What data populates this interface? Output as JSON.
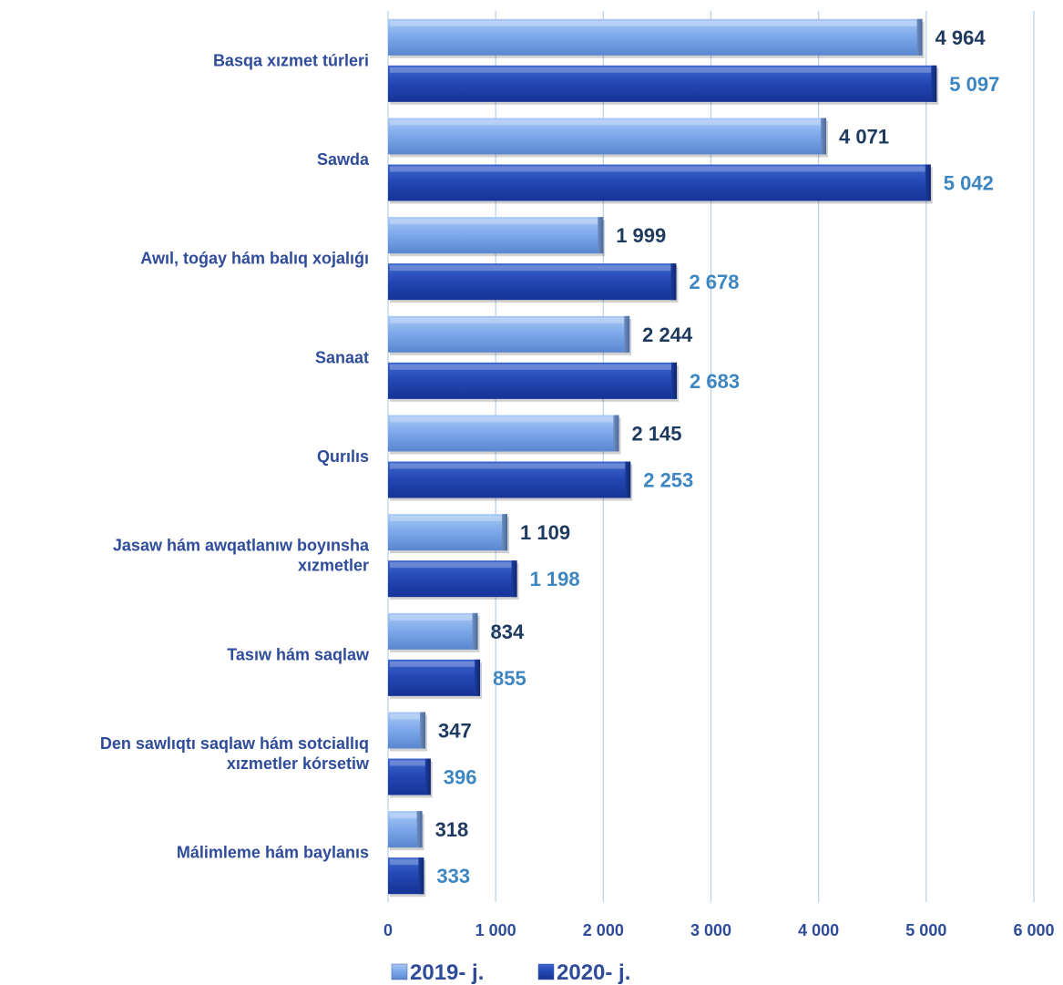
{
  "chart_data": {
    "type": "bar",
    "orientation": "horizontal",
    "categories": [
      [
        "Basqa xızmet túrleri"
      ],
      [
        "Sawda"
      ],
      [
        "Awıl, toǵay hám balıq xojalıǵı"
      ],
      [
        "Sanaat"
      ],
      [
        "Qurılıs"
      ],
      [
        "Jasaw hám awqatlanıw boyınsha",
        "xızmetler"
      ],
      [
        "Tasıw hám saqlaw"
      ],
      [
        "Den sawlıqtı saqlaw hám sotciallıq",
        "xızmetler kórsetiw"
      ],
      [
        "Málimleme hám baylanıs"
      ]
    ],
    "series": [
      {
        "name": "2019- j.",
        "values": [
          4964,
          4071,
          1999,
          2244,
          2145,
          1109,
          834,
          347,
          318
        ],
        "value_labels": [
          "4 964",
          "4 071",
          "1 999",
          "2 244",
          "2 145",
          "1 109",
          "834",
          "347",
          "318"
        ]
      },
      {
        "name": "2020- j.",
        "values": [
          5097,
          5042,
          2678,
          2683,
          2253,
          1198,
          855,
          396,
          333
        ],
        "value_labels": [
          "5 097",
          "5 042",
          "2 678",
          "2 683",
          "2 253",
          "1 198",
          "855",
          "396",
          "333"
        ]
      }
    ],
    "xlim": [
      0,
      6000
    ],
    "x_ticks": [
      0,
      1000,
      2000,
      3000,
      4000,
      5000,
      6000
    ],
    "x_tick_labels": [
      "0",
      "1 000",
      "2 000",
      "3 000",
      "4 000",
      "5 000",
      "6 000"
    ],
    "grid": "vertical",
    "legend_position": "bottom",
    "colors": {
      "series_2019": "#7BA7EA",
      "series_2020": "#2044B0",
      "label_2019": "#1F3A5F",
      "label_2020": "#3E86C1",
      "text": "#2E4C99",
      "grid": "#B7D0E6"
    }
  }
}
